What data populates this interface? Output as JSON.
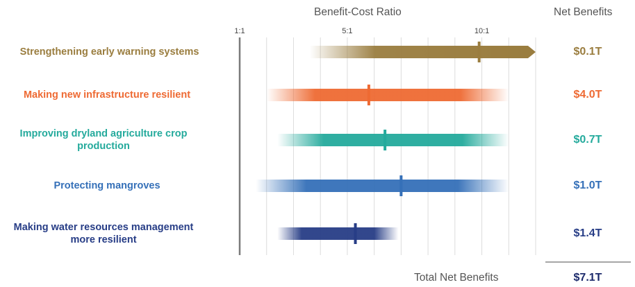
{
  "chart_data": {
    "type": "bar",
    "title": "Benefit-Cost Ratio",
    "net_benefits_header": "Net Benefits",
    "xlim": [
      1,
      12
    ],
    "ticks": [
      {
        "value": 1,
        "label": "1:1"
      },
      {
        "value": 5,
        "label": "5:1"
      },
      {
        "value": 10,
        "label": "10:1"
      }
    ],
    "series": [
      {
        "label": "Strengthening early warning systems",
        "low": 3.6,
        "high": 12,
        "point": 9.9,
        "arrow": true,
        "net_benefit": "$0.1T",
        "color": "#9a7d3f"
      },
      {
        "label": "Making new infrastructure resilient",
        "low": 2.0,
        "high": 11,
        "point": 5.8,
        "arrow": false,
        "net_benefit": "$4.0T",
        "color": "#ee6a33"
      },
      {
        "label": "Improving dryland agriculture crop production",
        "low": 2.4,
        "high": 11,
        "point": 6.4,
        "arrow": false,
        "net_benefit": "$0.7T",
        "color": "#24aa9c"
      },
      {
        "label": "Protecting mangroves",
        "low": 1.6,
        "high": 11,
        "point": 7.0,
        "arrow": false,
        "net_benefit": "$1.0T",
        "color": "#3570b8"
      },
      {
        "label": "Making water resources management more resilient",
        "low": 2.4,
        "high": 6.9,
        "point": 5.3,
        "arrow": false,
        "net_benefit": "$1.4T",
        "color": "#273d86"
      }
    ],
    "total_label": "Total Net Benefits",
    "total_value": "$7.1T"
  }
}
